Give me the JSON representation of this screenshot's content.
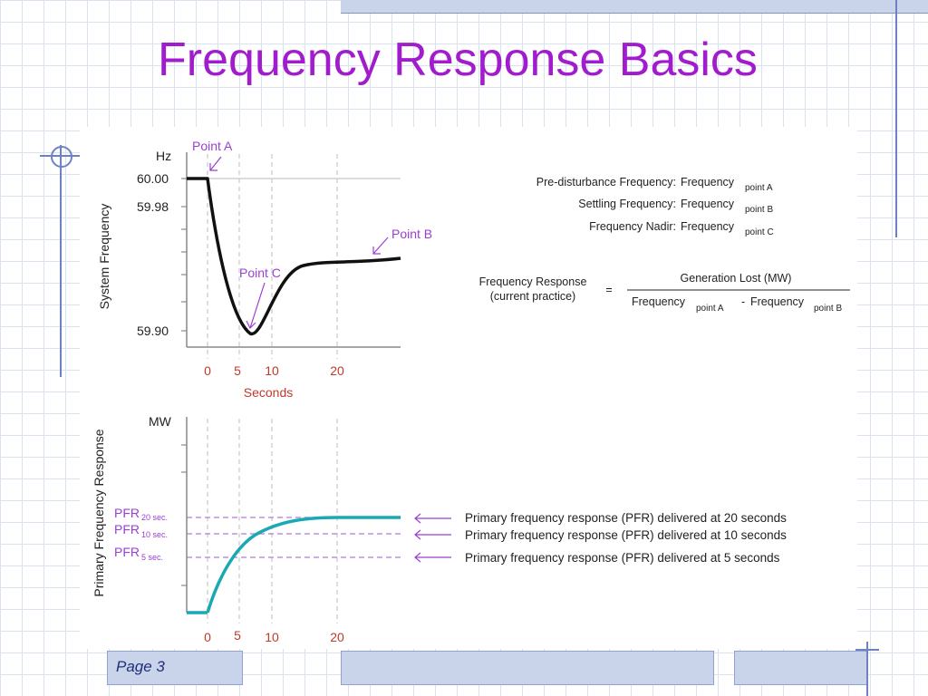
{
  "slide": {
    "title": "Frequency Response Basics",
    "page_label": "Page 3"
  },
  "top_chart": {
    "y_unit": "Hz",
    "y_axis_label": "System Frequency",
    "y_ticks": [
      "60.00",
      "59.98",
      "59.90"
    ],
    "x_ticks": [
      "0",
      "5",
      "10",
      "20"
    ],
    "x_axis_label": "Seconds",
    "point_a": "Point A",
    "point_b": "Point B",
    "point_c": "Point C"
  },
  "definitions": {
    "pre_disturbance": "Pre-disturbance Frequency:",
    "settling": "Settling Frequency:",
    "nadir": "Frequency Nadir:",
    "frequency_word": "Frequency",
    "sub_point_a": "point A",
    "sub_point_b": "point B",
    "sub_point_c": "point C"
  },
  "formula": {
    "lhs_line1": "Frequency Response",
    "lhs_line2": "(current practice)",
    "equals": "=",
    "numerator": "Generation Lost (MW)",
    "denom_word": "Frequency",
    "denom_sub_a": "point A",
    "minus": "-",
    "denom_sub_b": "point B"
  },
  "bottom_chart": {
    "y_unit": "MW",
    "y_axis_label": "Primary Frequency Response",
    "pfr_labels": [
      {
        "main": "PFR",
        "sub": "20 sec."
      },
      {
        "main": "PFR",
        "sub": "10 sec."
      },
      {
        "main": "PFR",
        "sub": "5 sec."
      }
    ],
    "x_ticks": [
      "0",
      "5",
      "10",
      "20"
    ],
    "notes": [
      "Primary frequency response (PFR) delivered at 20 seconds",
      "Primary frequency response (PFR) delivered at 10 seconds",
      "Primary frequency response (PFR) delivered at 5 seconds"
    ]
  },
  "colors": {
    "title": "#a11ccc",
    "label_purple": "#9b3fd1",
    "tick_red": "#c0392b",
    "pfr_curve": "#1aa9b4",
    "frequency_curve": "#111111"
  }
}
